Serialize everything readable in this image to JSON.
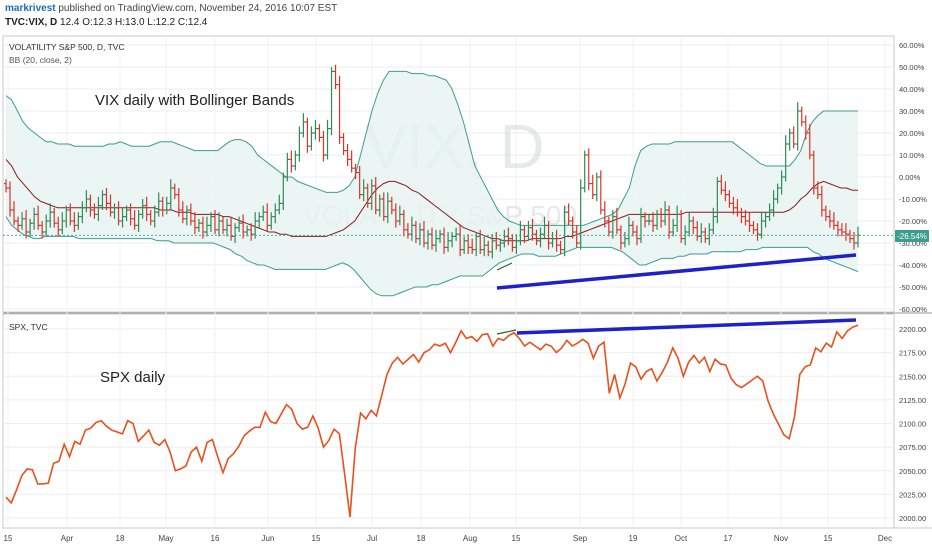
{
  "header": {
    "author": "markrivest",
    "published_text": "published on TradingView.com, November 24, 2016 10:07 EST",
    "symbol": "TVC:VIX, D",
    "ohlc": "12.4 O:12.3 H:13.0 L:12.2 C:12.4"
  },
  "colors": {
    "up": "#2e8b57",
    "down": "#d9342b",
    "band": "#3a9e8f",
    "band_fill": "#e6f4f1",
    "basis": "#8b1a1a",
    "spx": "#e8501c",
    "trendline": "#1f1fcc",
    "small_line": "#2e5e2e",
    "badge": "#3a9e8f"
  },
  "chart_data": [
    {
      "type": "candlestick",
      "pane": "VIX",
      "legend_title": "VOLATILITY S&P 500, D, TVC",
      "legend_indicator": "BB (20, close, 2)",
      "annotation": "VIX daily with Bollinger Bands",
      "watermark_big": "VIX, D",
      "watermark_small": "VOLATILITY S&P 500",
      "y_ticks": [
        "60.00%",
        "50.00%",
        "40.00%",
        "30.00%",
        "20.00%",
        "10.00%",
        "0.00%",
        "-10.00%",
        "-20.00%",
        "-30.00%",
        "-40.00%",
        "-50.00%",
        "-60.00%"
      ],
      "last_value_label": "-26.54%",
      "ylim": [
        -60,
        62
      ],
      "close": [
        -5,
        -15,
        -20,
        -22,
        -19,
        -25,
        -21,
        -17,
        -22,
        -25,
        -20,
        -16,
        -21,
        -24,
        -20,
        -15,
        -20,
        -22,
        -18,
        -14,
        -10,
        -15,
        -17,
        -13,
        -8,
        -12,
        -16,
        -14,
        -20,
        -18,
        -15,
        -19,
        -22,
        -17,
        -13,
        -17,
        -20,
        -16,
        -11,
        -15,
        -12,
        -5,
        -8,
        -15,
        -19,
        -15,
        -20,
        -23,
        -21,
        -25,
        -22,
        -18,
        -24,
        -20,
        -24,
        -22,
        -27,
        -23,
        -21,
        -25,
        -24,
        -26,
        -20,
        -18,
        -16,
        -22,
        -18,
        -15,
        -12,
        0,
        8,
        5,
        10,
        20,
        25,
        14,
        20,
        22,
        18,
        10,
        22,
        48,
        42,
        18,
        12,
        8,
        4,
        2,
        -8,
        -5,
        -12,
        -4,
        -15,
        -10,
        -18,
        -11,
        -15,
        -20,
        -17,
        -24,
        -26,
        -22,
        -28,
        -24,
        -30,
        -26,
        -31,
        -28,
        -26,
        -32,
        -29,
        -27,
        -26,
        -33,
        -29,
        -32,
        -33,
        -27,
        -33,
        -31,
        -34,
        -29,
        -31,
        -30,
        -27,
        -28,
        -32,
        -29,
        -24,
        -27,
        -23,
        -26,
        -29,
        -26,
        -22,
        -30,
        -28,
        -31,
        -33,
        -16,
        -20,
        -25,
        -30,
        -5,
        10,
        -3,
        -8,
        0,
        -15,
        -20,
        -25,
        -18,
        -24,
        -30,
        -28,
        -22,
        -25,
        -28,
        -18,
        -20,
        -20,
        -22,
        -17,
        -20,
        -15,
        -25,
        -22,
        -17,
        -28,
        -25,
        -20,
        -23,
        -27,
        -25,
        -28,
        -24,
        -18,
        -2,
        -6,
        -8,
        -12,
        -14,
        -16,
        -18,
        -20,
        -22,
        -24,
        -26,
        -20,
        -18,
        -15,
        -10,
        -5,
        0,
        15,
        20,
        15,
        30,
        25,
        20,
        10,
        -5,
        -8,
        -15,
        -18,
        -20,
        -22,
        -24,
        -25,
        -26,
        -28,
        -30,
        -26.5
      ],
      "bb_upper": [
        37,
        35,
        30,
        25,
        22,
        20,
        18,
        16,
        16,
        15,
        15,
        15,
        14,
        14,
        14,
        14,
        14,
        14,
        15,
        15,
        16,
        15,
        14,
        14,
        14,
        14,
        15,
        16,
        16,
        16,
        15,
        14,
        13,
        12,
        12,
        12,
        12,
        12,
        14,
        16,
        17,
        17,
        16,
        14,
        10,
        8,
        6,
        4,
        2,
        0,
        0,
        -2,
        -3,
        -4,
        -5,
        -6,
        -7,
        -7,
        -7,
        -6,
        -4,
        0,
        10,
        20,
        30,
        38,
        44,
        48,
        48,
        48,
        48,
        47,
        47,
        47,
        46,
        46,
        45,
        44,
        40,
        33,
        25,
        15,
        5,
        0,
        -5,
        -10,
        -15,
        -18,
        -20,
        -21,
        -22,
        -22,
        -22,
        -22,
        -22,
        -22,
        -22,
        -22,
        -22,
        -22,
        -22,
        -22,
        -21,
        -20,
        -19,
        -18,
        -17,
        -15,
        -10,
        -5,
        5,
        12,
        14,
        15,
        15,
        15,
        15,
        16,
        16,
        16,
        16,
        16,
        16,
        16,
        16,
        16,
        16,
        16,
        14,
        12,
        10,
        8,
        6,
        5,
        5,
        5,
        5,
        5,
        8,
        12,
        20,
        25,
        28,
        30,
        30,
        30,
        30,
        30,
        30,
        30
      ],
      "bb_lower": [
        -18,
        -22,
        -24,
        -26,
        -27,
        -28,
        -28,
        -27,
        -27,
        -27,
        -27,
        -27,
        -27,
        -28,
        -28,
        -28,
        -28,
        -28,
        -28,
        -28,
        -28,
        -28,
        -28,
        -28,
        -28,
        -28,
        -28,
        -29,
        -29,
        -29,
        -30,
        -30,
        -30,
        -30,
        -30,
        -30,
        -30,
        -30,
        -31,
        -32,
        -33,
        -35,
        -36,
        -38,
        -39,
        -40,
        -40,
        -41,
        -42,
        -42,
        -42,
        -42,
        -42,
        -42,
        -42,
        -42,
        -42,
        -42,
        -41,
        -40,
        -39,
        -40,
        -42,
        -45,
        -48,
        -51,
        -53,
        -54,
        -54,
        -54,
        -53,
        -52,
        -51,
        -50,
        -50,
        -50,
        -49,
        -49,
        -48,
        -47,
        -46,
        -45,
        -45,
        -45,
        -45,
        -45,
        -43,
        -41,
        -39,
        -38,
        -37,
        -36,
        -35,
        -35,
        -35,
        -36,
        -36,
        -36,
        -36,
        -35,
        -34,
        -33,
        -32,
        -32,
        -32,
        -32,
        -32,
        -32,
        -32,
        -33,
        -34,
        -36,
        -38,
        -40,
        -40,
        -39,
        -38,
        -37,
        -37,
        -37,
        -36,
        -36,
        -35,
        -35,
        -35,
        -35,
        -34,
        -34,
        -34,
        -34,
        -34,
        -34,
        -33,
        -33,
        -33,
        -32,
        -32,
        -32,
        -32,
        -32,
        -32,
        -32,
        -32,
        -32,
        -34,
        -35,
        -37,
        -38,
        -39,
        -40,
        -41,
        -42,
        -43
      ],
      "bb_basis": [
        8,
        5,
        0,
        -3,
        -6,
        -9,
        -11,
        -12,
        -13,
        -14,
        -14,
        -14,
        -14,
        -14,
        -14,
        -14,
        -14,
        -14,
        -14,
        -14,
        -14,
        -14,
        -14,
        -14,
        -14,
        -14,
        -14,
        -15,
        -15,
        -15,
        -16,
        -16,
        -16,
        -17,
        -17,
        -17,
        -17,
        -17,
        -18,
        -18,
        -19,
        -20,
        -21,
        -22,
        -23,
        -24,
        -25,
        -25,
        -26,
        -26,
        -27,
        -27,
        -27,
        -27,
        -27,
        -27,
        -27,
        -26,
        -25,
        -24,
        -22,
        -20,
        -16,
        -12,
        -8,
        -5,
        -3,
        -2,
        -2,
        -3,
        -4,
        -6,
        -7,
        -9,
        -11,
        -13,
        -15,
        -17,
        -19,
        -21,
        -23,
        -24,
        -25,
        -26,
        -27,
        -28,
        -28,
        -29,
        -29,
        -29,
        -29,
        -29,
        -28,
        -28,
        -28,
        -28,
        -28,
        -28,
        -27,
        -27,
        -26,
        -25,
        -24,
        -23,
        -22,
        -21,
        -20,
        -19,
        -18,
        -17,
        -17,
        -17,
        -17,
        -17,
        -17,
        -17,
        -17,
        -17,
        -17,
        -16,
        -16,
        -16,
        -16,
        -16,
        -16,
        -16,
        -16,
        -16,
        -16,
        -16,
        -16,
        -16,
        -16,
        -16,
        -16,
        -16,
        -16,
        -15,
        -13,
        -10,
        -8,
        -5,
        -3,
        -2,
        -3,
        -4,
        -5,
        -5,
        -6,
        -6
      ]
    },
    {
      "type": "line",
      "pane": "SPX",
      "legend_title": "SPX, TVC",
      "annotation": "SPX daily",
      "y_ticks": [
        "2200.00",
        "2175.00",
        "2150.00",
        "2125.00",
        "2100.00",
        "2075.00",
        "2050.00",
        "2025.00",
        "2000.00"
      ],
      "ylim": [
        1996,
        2206
      ],
      "values": [
        2022,
        2016,
        2030,
        2045,
        2052,
        2051,
        2036,
        2036,
        2037,
        2058,
        2060,
        2078,
        2065,
        2081,
        2078,
        2093,
        2095,
        2101,
        2103,
        2097,
        2093,
        2091,
        2089,
        2103,
        2100,
        2081,
        2087,
        2093,
        2080,
        2077,
        2083,
        2070,
        2050,
        2052,
        2055,
        2070,
        2075,
        2060,
        2080,
        2083,
        2065,
        2048,
        2063,
        2068,
        2076,
        2087,
        2092,
        2096,
        2096,
        2112,
        2102,
        2100,
        2110,
        2120,
        2115,
        2100,
        2094,
        2096,
        2108,
        2095,
        2075,
        2082,
        2094,
        2089,
        2046,
        2001,
        2074,
        2111,
        2105,
        2114,
        2108,
        2130,
        2152,
        2164,
        2170,
        2163,
        2168,
        2173,
        2165,
        2175,
        2178,
        2184,
        2182,
        2185,
        2175,
        2186,
        2198,
        2190,
        2192,
        2187,
        2194,
        2195,
        2182,
        2190,
        2188,
        2193,
        2196,
        2190,
        2182,
        2186,
        2182,
        2178,
        2184,
        2182,
        2175,
        2180,
        2188,
        2182,
        2185,
        2189,
        2185,
        2169,
        2182,
        2186,
        2132,
        2152,
        2127,
        2142,
        2164,
        2160,
        2147,
        2155,
        2158,
        2145,
        2154,
        2165,
        2180,
        2169,
        2150,
        2165,
        2172,
        2164,
        2170,
        2155,
        2168,
        2163,
        2162,
        2148,
        2141,
        2138,
        2142,
        2146,
        2150,
        2145,
        2124,
        2110,
        2099,
        2088,
        2084,
        2107,
        2152,
        2160,
        2162,
        2180,
        2176,
        2185,
        2181,
        2197,
        2190,
        2198,
        2202,
        2204
      ],
      "trendline_label": ""
    }
  ],
  "x_axis": {
    "labels": [
      "15",
      "Apr",
      "18",
      "May",
      "16",
      "Jun",
      "15",
      "Jul",
      "18",
      "Aug",
      "15",
      "Sep",
      "19",
      "Oct",
      "17",
      "Nov",
      "15",
      "Dec"
    ]
  }
}
